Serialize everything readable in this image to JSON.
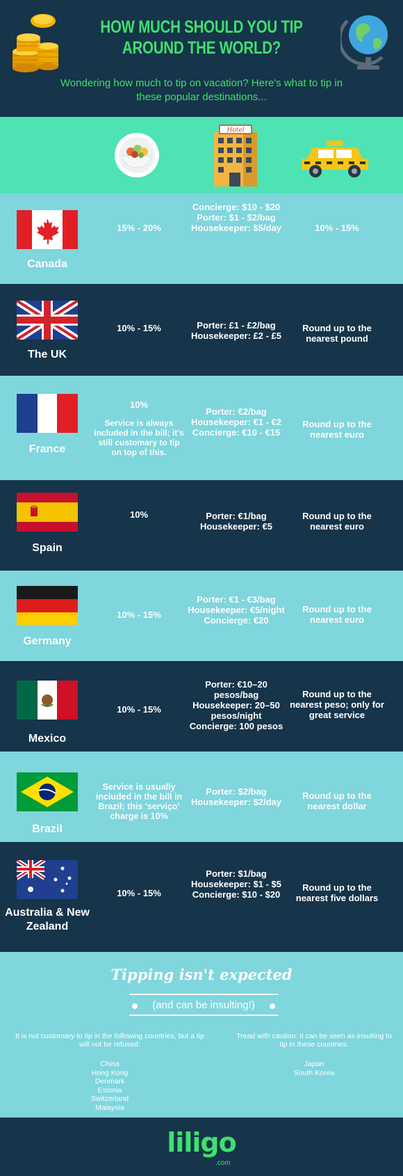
{
  "header": {
    "title": "HOW MUCH SHOULD YOU TIP AROUND THE WORLD?",
    "subtitle": "Wondering how much to tip on vacation? Here's what to tip in these popular destinations..."
  },
  "column_icons": [
    "food-plate-icon",
    "hotel-building-icon",
    "taxi-icon"
  ],
  "hotel_sign": "Hotel",
  "countries": [
    {
      "name": "Canada",
      "restaurant": "15% - 20%",
      "hotel": "Concierge: $10 - $20\nPorter: $1 - $2/bag\nHousekeeper: $5/day",
      "taxi": "10% - 15%"
    },
    {
      "name": "The UK",
      "restaurant": "10% - 15%",
      "hotel": "Porter: £1 - £2/bag\nHousekeeper: £2 - £5",
      "taxi": "Round up to the nearest pound"
    },
    {
      "name": "France",
      "restaurant": "10%",
      "restaurant_note": "Service is always included in the bill; it's still customary to tip on top of this.",
      "hotel": "Porter: €2/bag\nHousekeeper: €1 - €2\nConcierge: €10 - €15",
      "taxi": "Round up to the nearest euro"
    },
    {
      "name": "Spain",
      "restaurant": "10%",
      "hotel": "Porter: €1/bag\nHousekeeper: €5",
      "taxi": "Round up to the nearest euro"
    },
    {
      "name": "Germany",
      "restaurant": "10% - 15%",
      "hotel": "Porter: €1 - €3/bag\nHousekeeper: €5/night\nConcierge: €20",
      "taxi": "Round up to the nearest euro"
    },
    {
      "name": "Mexico",
      "restaurant": "10% - 15%",
      "hotel": "Porter: €10–20 pesos/bag\nHousekeeper: 20–50 pesos/night\nConcierge: 100 pesos",
      "taxi": "Round up to the nearest peso; only for great service"
    },
    {
      "name": "Brazil",
      "restaurant": "Service is usually included in the bill in Brazil; this 'serviço' charge is 10%",
      "hotel": "Porter: $2/bag\nHousekeeper: $2/day",
      "taxi": "Round up to the nearest dollar"
    },
    {
      "name": "Australia & New Zealand",
      "restaurant": "10% - 15%",
      "hotel": "Porter: $1/bag\nHousekeeper: $1 - $5\nConcierge: $10 - $20",
      "taxi": "Round up to the nearest five dollars"
    }
  ],
  "no_tip": {
    "title": "Tipping isn't expected",
    "subtitle": "(and can be insulting!)",
    "left_note": "It is not customary to tip in the following countries, but a tip will not be refused:",
    "left_list": [
      "China",
      "Hong Kong",
      "Denmark",
      "Estonia",
      "Switzerland",
      "Malaysia"
    ],
    "right_note": "Tread with caution: it can be seen as insulting to tip in these countries:",
    "right_list": [
      "Japan",
      "South Korea"
    ]
  },
  "footer": {
    "logo": "liligo",
    "logo_sub": ".com"
  },
  "colors": {
    "dark": "#16344a",
    "light": "#7fd6dd",
    "accent_green": "#3fe06d",
    "band": "#4ee3b4"
  }
}
